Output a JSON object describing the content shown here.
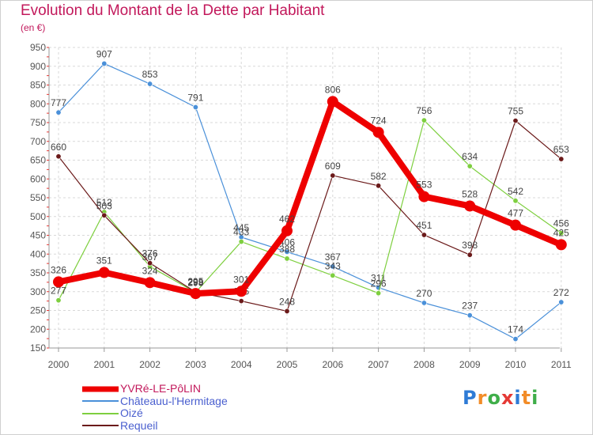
{
  "title": "Evolution du Montant de la Dette par Habitant",
  "unit": "(en €)",
  "brand": "Proxiti",
  "chart_data": {
    "type": "line",
    "title": "Evolution du Montant de la Dette par Habitant",
    "ylabel": "(en €)",
    "ylim": [
      150,
      950
    ],
    "yticks": [
      150,
      200,
      250,
      300,
      350,
      400,
      450,
      500,
      550,
      600,
      650,
      700,
      750,
      800,
      850,
      900,
      950
    ],
    "x": [
      "2000",
      "2001",
      "2002",
      "2003",
      "2004",
      "2005",
      "2006",
      "2007",
      "2008",
      "2009",
      "2010",
      "2011"
    ],
    "grid": true,
    "legend_position": "bottom-left",
    "series": [
      {
        "name": "Châteauu-l'Hermitage",
        "color": "#4a90d9",
        "values": [
          777,
          907,
          853,
          791,
          445,
          406,
          367,
          311,
          270,
          237,
          174,
          272
        ]
      },
      {
        "name": "Oizé",
        "color": "#7ecf3f",
        "values": [
          277,
          512,
          367,
          298,
          433,
          388,
          343,
          296,
          756,
          634,
          542,
          456
        ]
      },
      {
        "name": "Requeil",
        "color": "#6b1a1a",
        "values": [
          660,
          503,
          376,
          299,
          275,
          248,
          609,
          582,
          451,
          398,
          755,
          653
        ]
      },
      {
        "name": "YVRé-LE-PôLIN",
        "color": "#ee0000",
        "values": [
          326,
          351,
          324,
          295,
          301,
          462,
          806,
          724,
          553,
          528,
          477,
          425
        ]
      }
    ]
  }
}
